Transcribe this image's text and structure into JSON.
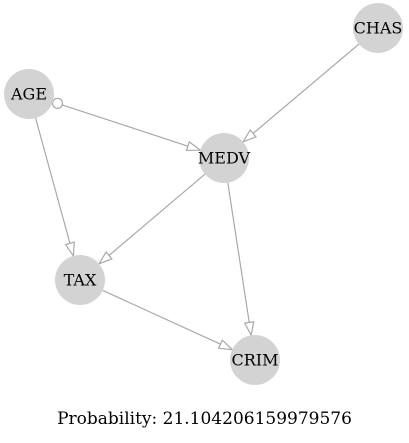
{
  "graph": {
    "nodes": [
      {
        "id": "CHAS",
        "label": "CHAS"
      },
      {
        "id": "AGE",
        "label": "AGE"
      },
      {
        "id": "MEDV",
        "label": "MEDV"
      },
      {
        "id": "TAX",
        "label": "TAX"
      },
      {
        "id": "CRIM",
        "label": "CRIM"
      }
    ],
    "edges": [
      {
        "from": "CHAS",
        "to": "MEDV",
        "tail": "none",
        "head": "arrow"
      },
      {
        "from": "AGE",
        "to": "MEDV",
        "tail": "circle",
        "head": "arrow"
      },
      {
        "from": "AGE",
        "to": "TAX",
        "tail": "none",
        "head": "arrow"
      },
      {
        "from": "MEDV",
        "to": "TAX",
        "tail": "none",
        "head": "arrow"
      },
      {
        "from": "MEDV",
        "to": "CRIM",
        "tail": "none",
        "head": "arrow"
      },
      {
        "from": "TAX",
        "to": "CRIM",
        "tail": "none",
        "head": "arrow"
      }
    ],
    "colors": {
      "node_fill": "#d3d3d3",
      "edge": "#a9a9a9",
      "text": "#000000"
    }
  },
  "caption": {
    "text": "Probability: 21.104206159979576"
  }
}
